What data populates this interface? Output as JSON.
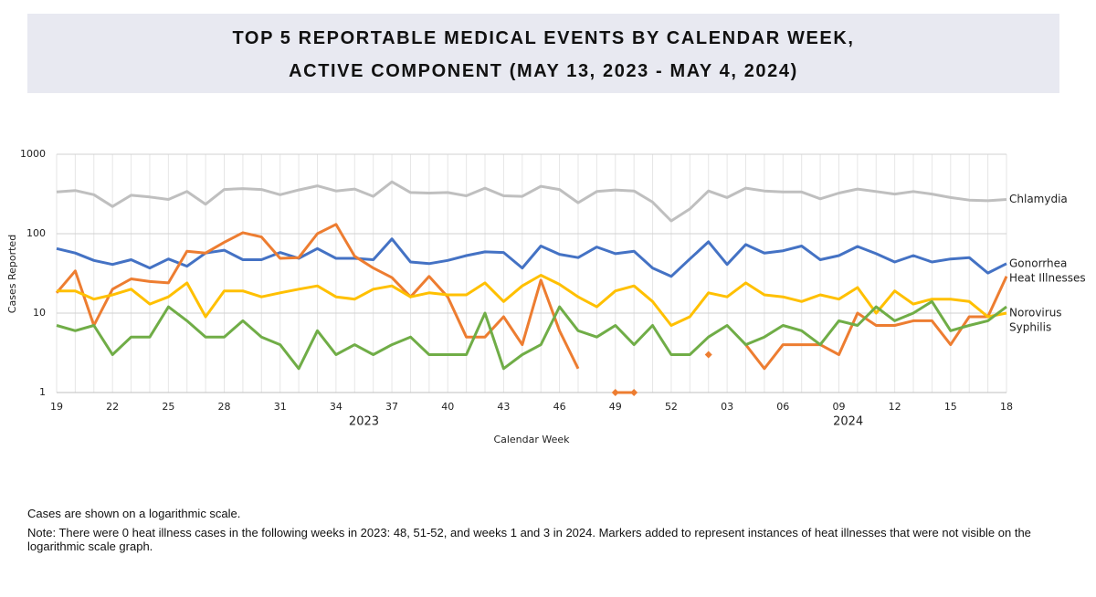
{
  "chart_data": {
    "type": "line",
    "title": [
      "TOP 5 REPORTABLE MEDICAL EVENTS BY CALENDAR WEEK,",
      "ACTIVE COMPONENT (MAY 13, 2023 - MAY 4, 2024)"
    ],
    "x_label": "Calendar Week",
    "y_label": "Cases Reported",
    "year_labels": [
      "2023",
      "2024"
    ],
    "categories": [
      "19",
      null,
      null,
      "22",
      null,
      null,
      "25",
      null,
      null,
      "28",
      null,
      null,
      "31",
      null,
      null,
      "34",
      null,
      null,
      "37",
      null,
      null,
      "40",
      null,
      null,
      "43",
      null,
      null,
      "46",
      null,
      null,
      "49",
      null,
      null,
      "52",
      null,
      null,
      "03",
      null,
      null,
      "06",
      null,
      null,
      "09",
      null,
      null,
      "12",
      null,
      null,
      "15",
      null,
      null,
      "18"
    ],
    "log_scale": true,
    "ylim": [
      1,
      1000
    ],
    "yticks": [
      1,
      10,
      100,
      1000
    ],
    "grid": true,
    "series": [
      {
        "name": "Chlamydia",
        "color": "#bfbfbf",
        "values": [
          335,
          350,
          310,
          220,
          305,
          290,
          270,
          340,
          235,
          360,
          370,
          360,
          310,
          355,
          400,
          345,
          365,
          295,
          450,
          330,
          325,
          330,
          300,
          375,
          300,
          295,
          395,
          360,
          245,
          340,
          355,
          345,
          250,
          145,
          205,
          345,
          285,
          375,
          345,
          335,
          335,
          275,
          325,
          365,
          340,
          315,
          340,
          315,
          285,
          265,
          260,
          270
        ]
      },
      {
        "name": "Gonorrhea",
        "color": "#4472c4",
        "values": [
          65,
          57,
          46,
          41,
          47,
          37,
          48,
          39,
          57,
          62,
          47,
          47,
          58,
          49,
          65,
          49,
          49,
          47,
          86,
          44,
          42,
          46,
          53,
          59,
          58,
          37,
          70,
          55,
          50,
          68,
          56,
          60,
          37,
          29,
          48,
          79,
          41,
          73,
          57,
          61,
          70,
          47,
          53,
          69,
          56,
          44,
          53,
          44,
          48,
          50,
          32,
          42
        ]
      },
      {
        "name": "Heat Illnesses",
        "color": "#ed7d31",
        "values": [
          18,
          34,
          7,
          20,
          27,
          25,
          24,
          60,
          57,
          78,
          103,
          91,
          49,
          50,
          100,
          131,
          52,
          37,
          28,
          16,
          29,
          16,
          5,
          5,
          9,
          4,
          26,
          6,
          2,
          null,
          1,
          1,
          null,
          null,
          null,
          3,
          null,
          4,
          2,
          4,
          4,
          4,
          3,
          10,
          7,
          7,
          8,
          8,
          4,
          9,
          9,
          29
        ]
      },
      {
        "name": "Norovirus",
        "color": "#ffc000",
        "values": [
          19,
          19,
          15,
          17,
          20,
          13,
          16,
          24,
          9,
          19,
          19,
          16,
          18,
          20,
          22,
          16,
          15,
          20,
          22,
          16,
          18,
          17,
          17,
          24,
          14,
          22,
          30,
          23,
          16,
          12,
          19,
          22,
          14,
          7,
          9,
          18,
          16,
          24,
          17,
          16,
          14,
          17,
          15,
          21,
          10,
          19,
          13,
          15,
          15,
          14,
          9,
          10
        ]
      },
      {
        "name": "Syphilis",
        "color": "#70ad47",
        "values": [
          7,
          6,
          7,
          3,
          5,
          5,
          12,
          8,
          5,
          5,
          8,
          5,
          4,
          2,
          6,
          3,
          4,
          3,
          4,
          5,
          3,
          3,
          3,
          10,
          2,
          3,
          4,
          12,
          6,
          5,
          7,
          4,
          7,
          3,
          3,
          5,
          7,
          4,
          5,
          7,
          6,
          4,
          8,
          7,
          12,
          8,
          10,
          14,
          6,
          7,
          8,
          12
        ]
      }
    ],
    "notes": [
      "Cases are shown on a logarithmic scale.",
      "Note: There were 0 heat illness cases in the following weeks in 2023: 48, 51-52, and weeks 1 and 3 in 2024. Markers added to represent instances of heat illnesses that were not visible on the logarithmic scale graph."
    ]
  }
}
